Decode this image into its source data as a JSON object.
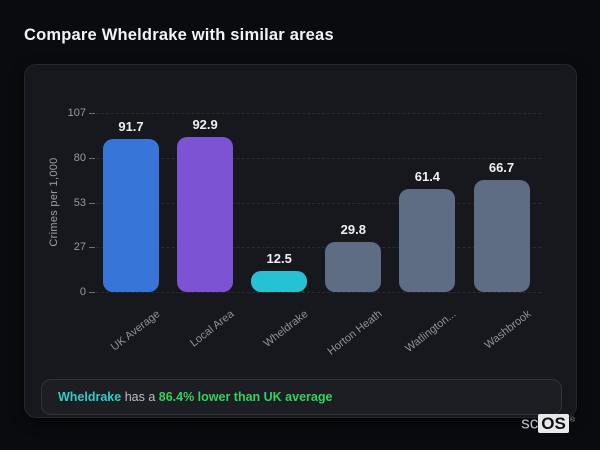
{
  "page": {
    "title": "Compare Wheldrake with similar areas"
  },
  "chart_data": {
    "type": "bar",
    "categories": [
      "UK Average",
      "Local Area",
      "Wheldrake",
      "Horton Heath",
      "Watlington...",
      "Washbrook"
    ],
    "values": [
      91.7,
      92.9,
      12.5,
      29.8,
      61.4,
      66.7
    ],
    "bar_colors": [
      "#3775d8",
      "#7c54d3",
      "#25c2d3",
      "#5f6d84",
      "#5f6d84",
      "#5f6d84"
    ],
    "title": "",
    "xlabel": "",
    "ylabel": "Crimes per 1,000",
    "ylim": [
      0,
      107
    ],
    "yticks": [
      0,
      27,
      53,
      80,
      107
    ],
    "grid": "horizontal-dashed",
    "legend": "none"
  },
  "note": {
    "area_label": "Wheldrake",
    "middle_text": " has a ",
    "highlight_text": "86.4% lower than UK average",
    "area_color": "#2ecbc6",
    "highlight_color": "#2fd35f"
  },
  "logo": {
    "prefix": "sc",
    "suffix": "OS",
    "registered_mark": "®"
  },
  "colors": {
    "page_background": "#0a0b0e",
    "card_background": "#17181d",
    "card_border": "#26282e",
    "grid_line": "#2a2c33",
    "axis_text": "#959aa3",
    "value_label": "#eef0f2"
  }
}
